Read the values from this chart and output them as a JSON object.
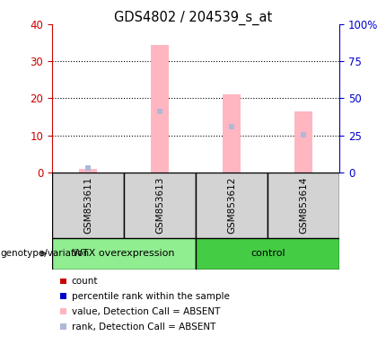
{
  "title": "GDS4802 / 204539_s_at",
  "samples": [
    "GSM853611",
    "GSM853613",
    "GSM853612",
    "GSM853614"
  ],
  "value_absent": [
    1.0,
    34.5,
    21.0,
    16.5
  ],
  "rank_absent_pct": [
    3.0,
    41.0,
    31.0,
    25.5
  ],
  "left_ylim": [
    0,
    40
  ],
  "right_ylim": [
    0,
    100
  ],
  "left_yticks": [
    0,
    10,
    20,
    30,
    40
  ],
  "right_yticks": [
    0,
    25,
    50,
    75,
    100
  ],
  "left_yticklabels": [
    "0",
    "10",
    "20",
    "30",
    "40"
  ],
  "right_yticklabels": [
    "0",
    "25",
    "50",
    "75",
    "100%"
  ],
  "left_color": "#CC0000",
  "right_color": "#0000CC",
  "bar_color_absent": "#FFB6C1",
  "rank_color_absent": "#B0B8D8",
  "label_bg_color": "#D3D3D3",
  "group_label_wtx": "#90EE90",
  "group_label_ctrl": "#44CC44",
  "legend_items": [
    {
      "color": "#CC0000",
      "label": "count"
    },
    {
      "color": "#0000CC",
      "label": "percentile rank within the sample"
    },
    {
      "color": "#FFB6C1",
      "label": "value, Detection Call = ABSENT"
    },
    {
      "color": "#B0B8D8",
      "label": "rank, Detection Call = ABSENT"
    }
  ],
  "bar_width": 0.25
}
